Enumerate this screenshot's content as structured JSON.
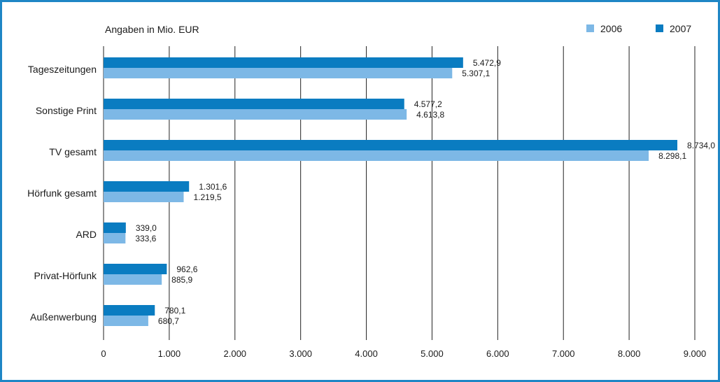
{
  "chart_data": {
    "type": "bar",
    "orientation": "horizontal",
    "subtitle": "Angaben in Mio. EUR",
    "categories": [
      "Tageszeitungen",
      "Sonstige Print",
      "TV gesamt",
      "Hörfunk gesamt",
      "ARD",
      "Privat-Hörfunk",
      "Außenwerbung"
    ],
    "series": [
      {
        "name": "2007",
        "color": "#0a7cc1",
        "values": [
          5472.9,
          4577.2,
          8734.0,
          1301.6,
          339.0,
          962.6,
          780.1
        ],
        "labels": [
          "5.472,9",
          "4.577,2",
          "8.734,0",
          "1.301,6",
          "339,0",
          "962,6",
          "780,1"
        ]
      },
      {
        "name": "2006",
        "color": "#7db8e6",
        "values": [
          5307.1,
          4613.8,
          8298.1,
          1219.5,
          333.6,
          885.9,
          680.7
        ],
        "labels": [
          "5.307,1",
          "4.613,8",
          "8.298,1",
          "1.219,5",
          "333,6",
          "885,9",
          "680,7"
        ]
      }
    ],
    "legend_order": [
      "2006",
      "2007"
    ],
    "legend_position": "top-right",
    "x_ticks": [
      0,
      1000,
      2000,
      3000,
      4000,
      5000,
      6000,
      7000,
      8000,
      9000
    ],
    "x_tick_labels": [
      "0",
      "1.000",
      "2.000",
      "3.000",
      "4.000",
      "5.000",
      "6.000",
      "7.000",
      "8.000",
      "9.000"
    ],
    "xlim": [
      0,
      9000
    ],
    "grid": "vertical",
    "frame_color": "#1e86c5"
  }
}
